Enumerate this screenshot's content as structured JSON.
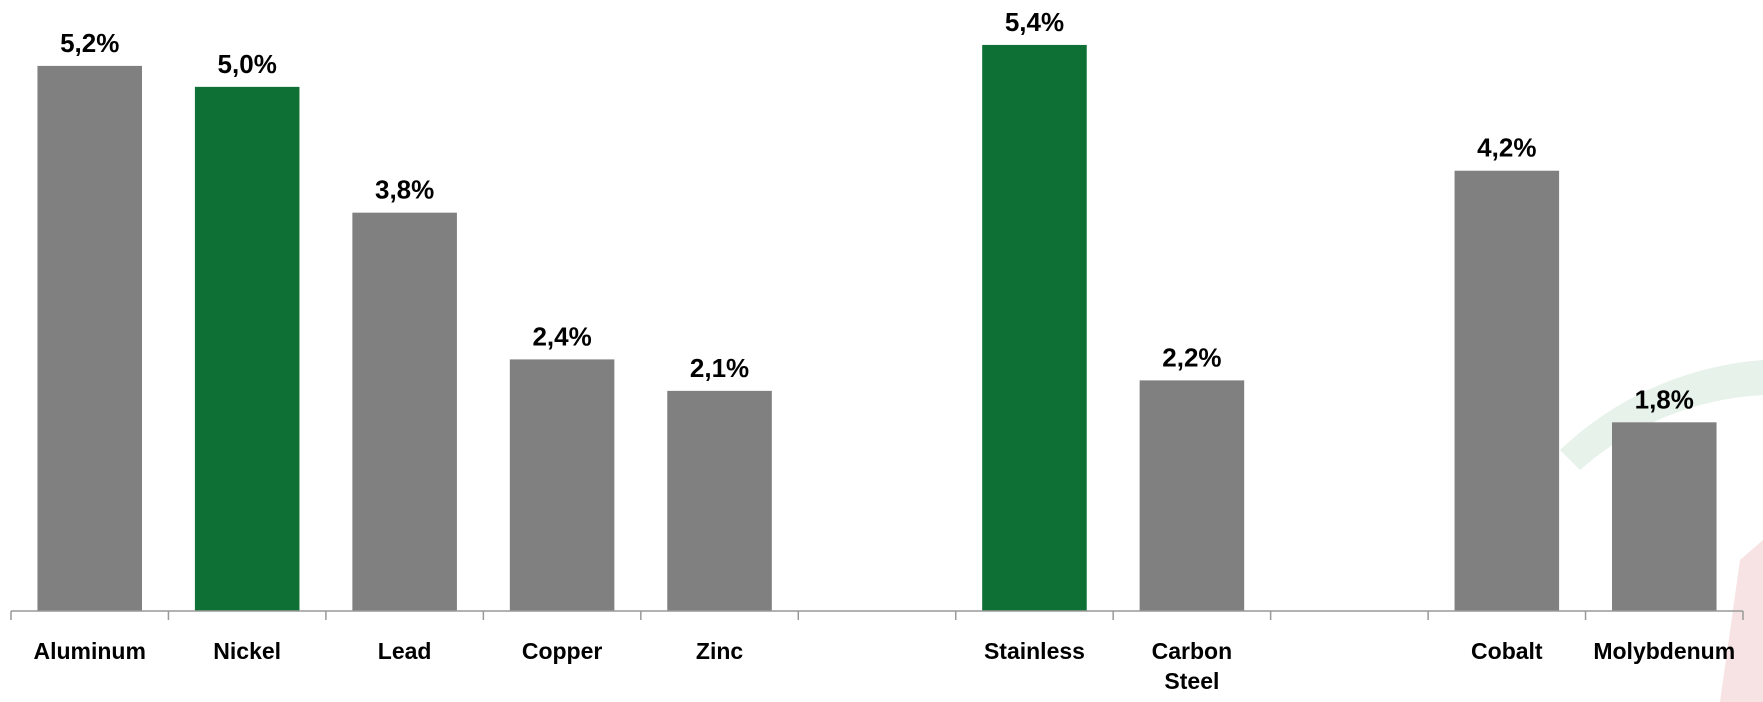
{
  "chart_data": {
    "type": "bar",
    "categories": [
      "Aluminum",
      "Nickel",
      "Lead",
      "Copper",
      "Zinc",
      null,
      "Stainless",
      "Carbon Steel",
      null,
      "Cobalt",
      "Molybdenum"
    ],
    "values": [
      5.2,
      5.0,
      3.8,
      2.4,
      2.1,
      null,
      5.4,
      2.2,
      null,
      4.2,
      1.8
    ],
    "value_labels": [
      "5,2%",
      "5,0%",
      "3,8%",
      "2,4%",
      "2,1%",
      null,
      "5,4%",
      "2,2%",
      null,
      "4,2%",
      "1,8%"
    ],
    "colors": [
      "#808080",
      "#0e7035",
      "#808080",
      "#808080",
      "#808080",
      null,
      "#0e7035",
      "#808080",
      null,
      "#808080",
      "#808080"
    ],
    "ylim": [
      0,
      5.8
    ]
  }
}
